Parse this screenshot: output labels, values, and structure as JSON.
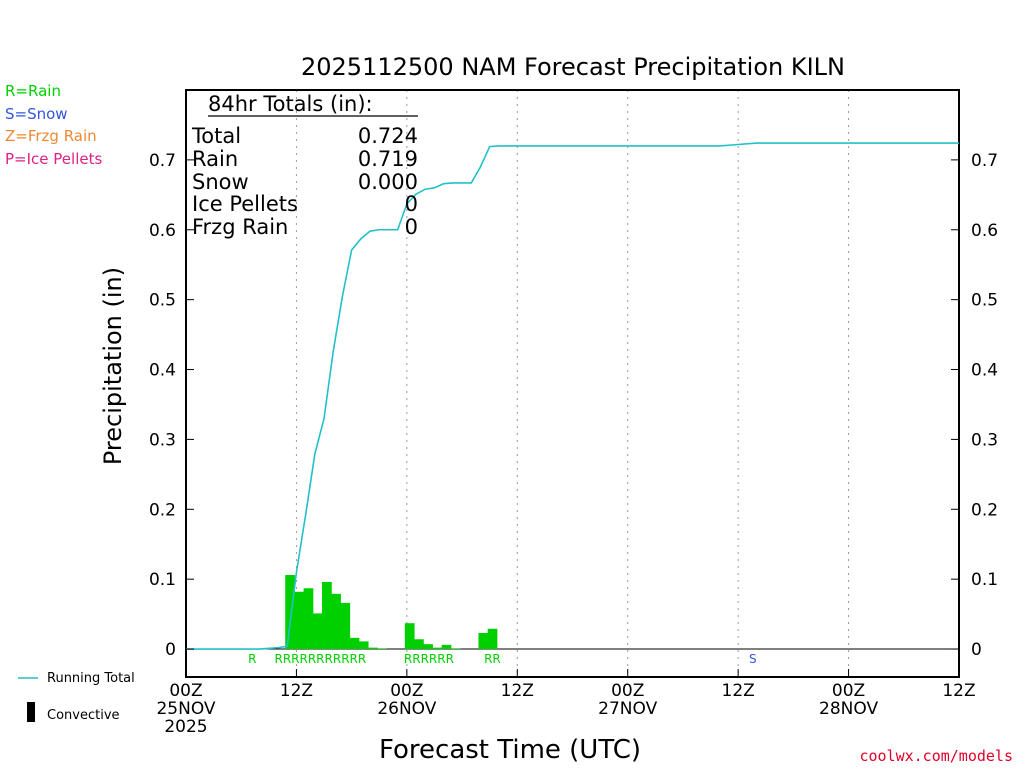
{
  "title": "2025112500 NAM Forecast Precipitation KILN",
  "ptype_legend": [
    {
      "text": "R=Rain",
      "color": "#00d000"
    },
    {
      "text": "S=Snow",
      "color": "#3355dd"
    },
    {
      "text": "Z=Frzg Rain",
      "color": "#ee8833"
    },
    {
      "text": "P=Ice Pellets",
      "color": "#dd2288"
    }
  ],
  "totals": {
    "header": "84hr Totals (in):",
    "rows": [
      {
        "label": "Total",
        "value": "0.724"
      },
      {
        "label": "Rain",
        "value": "0.719"
      },
      {
        "label": "Snow",
        "value": "0.000"
      },
      {
        "label": "Ice Pellets",
        "value": "0"
      },
      {
        "label": "Frzg Rain",
        "value": "0"
      }
    ]
  },
  "legend_bottom": {
    "running_total": "Running Total",
    "convective": "Convective"
  },
  "credit": "coolwx.com/models",
  "colors": {
    "running_total": "#22c0c8",
    "bars": "#00d000",
    "rain": "#00d000",
    "snow": "#3355dd"
  },
  "chart_data": {
    "type": "bar",
    "title": "2025112500 NAM Forecast Precipitation KILN",
    "xlabel": "Forecast Time (UTC)",
    "ylabel": "Precipitation (in)",
    "xlim_hours": [
      0,
      84
    ],
    "ylim": [
      -0.04,
      0.8
    ],
    "yticks": [
      0,
      0.1,
      0.2,
      0.3,
      0.4,
      0.5,
      0.6,
      0.7
    ],
    "ytick_labels": [
      "0",
      "0.1",
      "0.2",
      "0.3",
      "0.4",
      "0.5",
      "0.6",
      "0.7"
    ],
    "xticks": [
      {
        "hour": 0,
        "lines": [
          "00Z",
          "25NOV",
          "2025"
        ]
      },
      {
        "hour": 12,
        "lines": [
          "12Z"
        ]
      },
      {
        "hour": 24,
        "lines": [
          "00Z",
          "26NOV"
        ]
      },
      {
        "hour": 36,
        "lines": [
          "12Z"
        ]
      },
      {
        "hour": 48,
        "lines": [
          "00Z",
          "27NOV"
        ]
      },
      {
        "hour": 60,
        "lines": [
          "12Z"
        ]
      },
      {
        "hour": 72,
        "lines": [
          "00Z",
          "28NOV"
        ]
      },
      {
        "hour": 84,
        "lines": [
          "12Z"
        ]
      }
    ],
    "hourly_precip": {
      "name": "Hourly Precipitation",
      "hours": [
        11,
        12,
        13,
        14,
        15,
        16,
        17,
        18,
        19,
        20,
        21,
        24,
        25,
        26,
        27,
        28,
        29,
        32,
        33
      ],
      "values": [
        0.106,
        0.082,
        0.087,
        0.051,
        0.096,
        0.079,
        0.066,
        0.016,
        0.011,
        0.002,
        0.001,
        0.037,
        0.014,
        0.007,
        0.002,
        0.006,
        0.001,
        0.023,
        0.029
      ]
    },
    "running_total": {
      "name": "Running Total",
      "hours": [
        0,
        8,
        10,
        11,
        12,
        13,
        14,
        15,
        16,
        17,
        18,
        19,
        20,
        21,
        22,
        23,
        24,
        25,
        26,
        27,
        28,
        29,
        30,
        31,
        32,
        33,
        34,
        40,
        45,
        50,
        55,
        58,
        60,
        62,
        70,
        84
      ],
      "values": [
        0,
        0,
        0.002,
        0.004,
        0.11,
        0.192,
        0.279,
        0.33,
        0.426,
        0.505,
        0.571,
        0.587,
        0.598,
        0.6,
        0.6,
        0.6,
        0.637,
        0.651,
        0.658,
        0.66,
        0.666,
        0.667,
        0.667,
        0.667,
        0.69,
        0.719,
        0.72,
        0.72,
        0.72,
        0.72,
        0.72,
        0.72,
        0.722,
        0.724,
        0.724,
        0.724
      ]
    },
    "ptype_markers": [
      {
        "hour": 7.2,
        "text": "R",
        "type": "rain"
      },
      {
        "hour": 14.6,
        "text": "RRRRRRRRRRR",
        "type": "rain"
      },
      {
        "hour": 26.4,
        "text": "RRRRRR",
        "type": "rain"
      },
      {
        "hour": 33.3,
        "text": "RR",
        "type": "rain"
      },
      {
        "hour": 61.6,
        "text": "S",
        "type": "snow"
      }
    ]
  }
}
